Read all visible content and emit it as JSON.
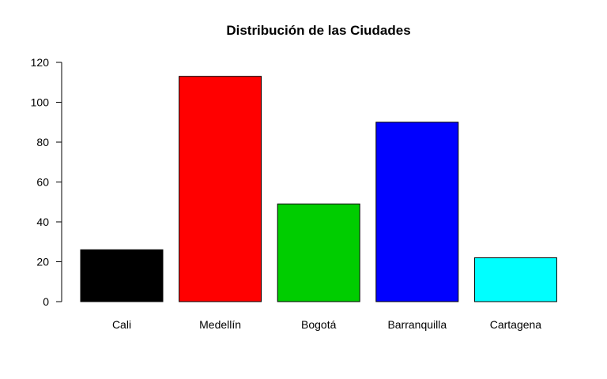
{
  "chart_data": {
    "type": "bar",
    "title": "Distribución de las Ciudades",
    "xlabel": "",
    "ylabel": "",
    "categories": [
      "Cali",
      "Medellín",
      "Bogotá",
      "Barranquilla",
      "Cartagena"
    ],
    "values": [
      26,
      113,
      49,
      90,
      22
    ],
    "colors": [
      "#000000",
      "#ff0000",
      "#00cd00",
      "#0000ff",
      "#00ffff"
    ],
    "ylim": [
      0,
      120
    ],
    "yticks": [
      0,
      20,
      40,
      60,
      80,
      100,
      120
    ],
    "grid": false,
    "legend": "none"
  }
}
